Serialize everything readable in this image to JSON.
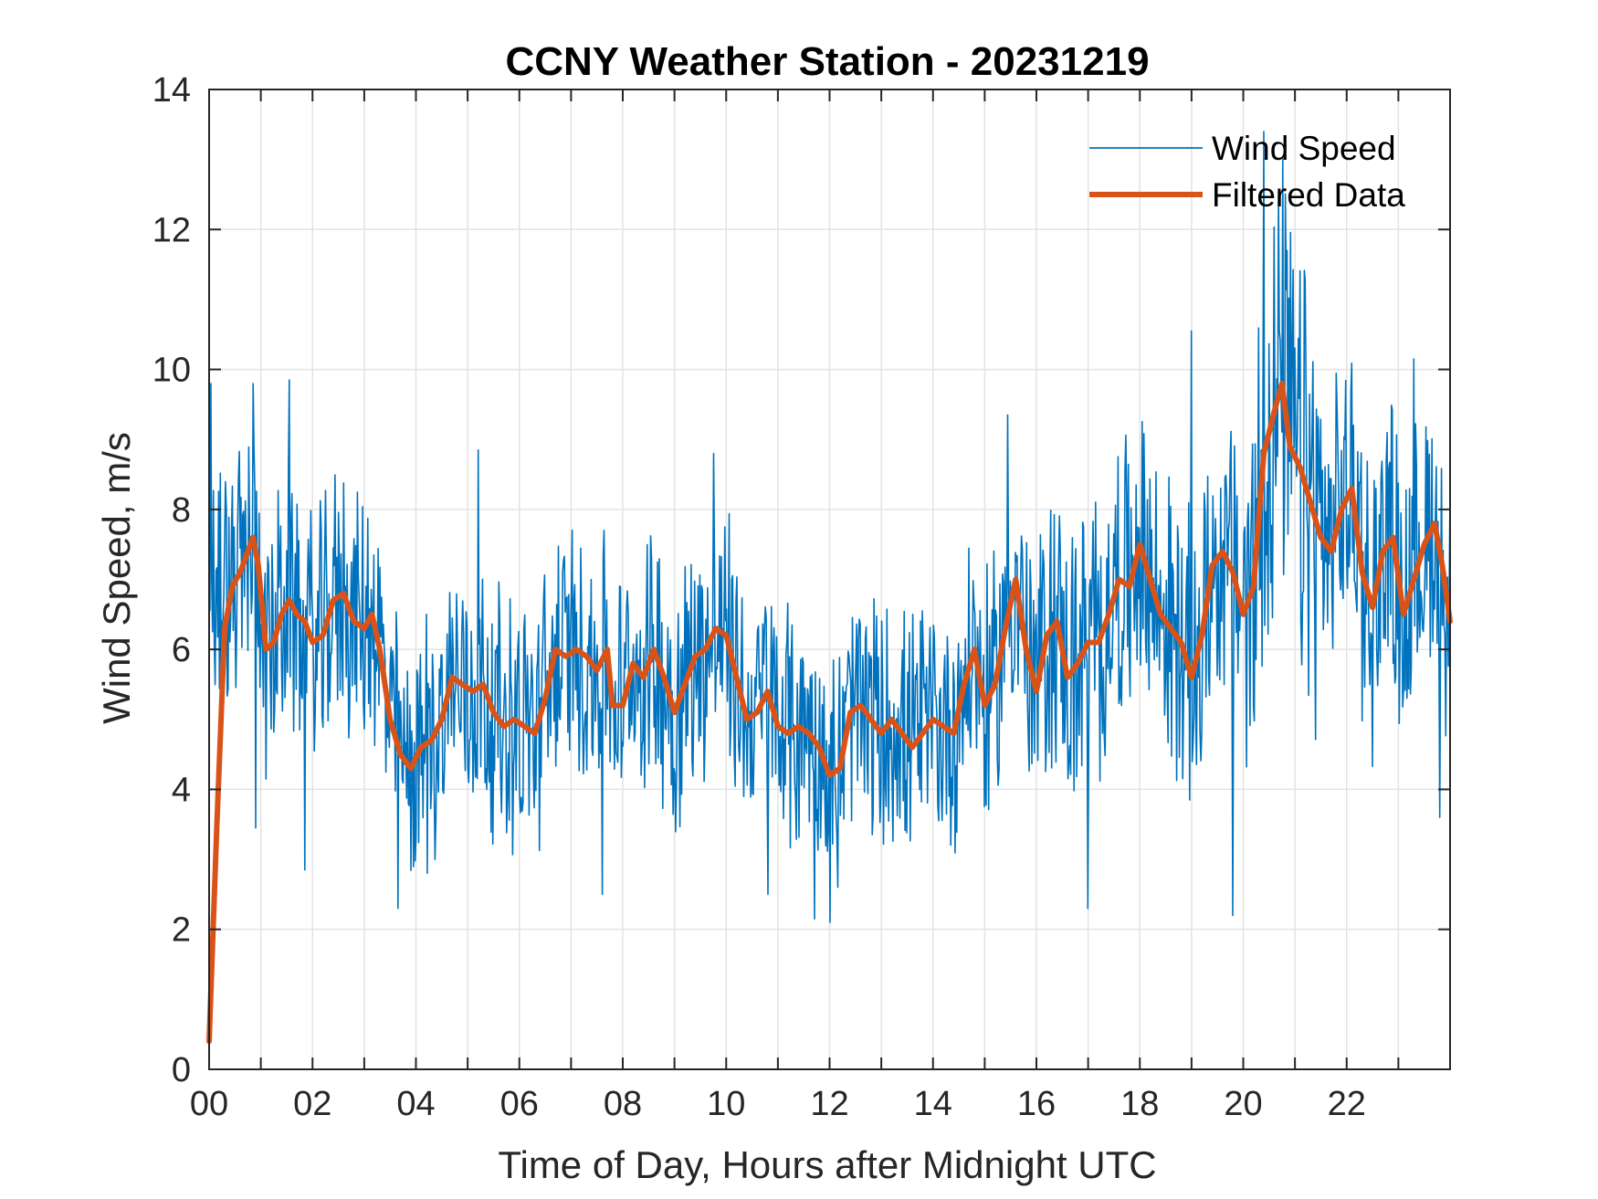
{
  "chart_data": {
    "type": "line",
    "title": "CCNY Weather Station - 20231219",
    "xlabel": "Time of Day, Hours after Midnight UTC",
    "ylabel": "Wind Speed, m/s",
    "xlim": [
      0,
      24
    ],
    "ylim": [
      0,
      14
    ],
    "grid": true,
    "legend_position": "top-right",
    "x_ticks": [
      0,
      2,
      4,
      6,
      8,
      10,
      12,
      14,
      16,
      18,
      20,
      22
    ],
    "x_tick_labels": [
      "00",
      "02",
      "04",
      "06",
      "08",
      "10",
      "12",
      "14",
      "16",
      "18",
      "20",
      "22"
    ],
    "x_minor_ticks": [
      1,
      3,
      5,
      7,
      9,
      11,
      13,
      15,
      17,
      19,
      21,
      23
    ],
    "y_ticks": [
      0,
      2,
      4,
      6,
      8,
      10,
      12,
      14
    ],
    "y_tick_labels": [
      "0",
      "2",
      "4",
      "6",
      "8",
      "10",
      "12",
      "14"
    ],
    "series": [
      {
        "name": "Wind Speed",
        "color": "#0072BD",
        "style": "thin-noisy",
        "note": "raw 1-minute samples fluctuating roughly ±2 m/s around the filtered curve; min ≈2.1 (~12.1h), max ≈13.4 (~20.4h)",
        "noise_amplitude": 1.6,
        "peaks": [
          {
            "x": 0.03,
            "y": 9.8
          },
          {
            "x": 0.85,
            "y": 9.8
          },
          {
            "x": 1.55,
            "y": 9.85
          },
          {
            "x": 5.2,
            "y": 8.85
          },
          {
            "x": 9.75,
            "y": 8.8
          },
          {
            "x": 15.45,
            "y": 9.35
          },
          {
            "x": 19.0,
            "y": 10.55
          },
          {
            "x": 20.4,
            "y": 13.4
          },
          {
            "x": 20.85,
            "y": 11.7
          },
          {
            "x": 23.3,
            "y": 10.15
          }
        ],
        "troughs": [
          {
            "x": 0.9,
            "y": 3.45
          },
          {
            "x": 1.85,
            "y": 2.85
          },
          {
            "x": 3.65,
            "y": 2.3
          },
          {
            "x": 7.6,
            "y": 2.5
          },
          {
            "x": 10.8,
            "y": 2.5
          },
          {
            "x": 11.7,
            "y": 2.15
          },
          {
            "x": 12.0,
            "y": 2.1
          },
          {
            "x": 17.0,
            "y": 2.3
          },
          {
            "x": 19.8,
            "y": 2.2
          },
          {
            "x": 23.8,
            "y": 3.6
          }
        ]
      },
      {
        "name": "Filtered Data",
        "color": "#D95319",
        "style": "thick",
        "x": [
          0.0,
          0.15,
          0.3,
          0.45,
          0.6,
          0.75,
          0.85,
          0.95,
          1.1,
          1.25,
          1.4,
          1.55,
          1.7,
          1.85,
          2.0,
          2.2,
          2.4,
          2.6,
          2.8,
          3.0,
          3.15,
          3.3,
          3.5,
          3.7,
          3.9,
          4.1,
          4.3,
          4.5,
          4.7,
          4.9,
          5.1,
          5.3,
          5.5,
          5.7,
          5.9,
          6.1,
          6.3,
          6.5,
          6.7,
          6.9,
          7.1,
          7.3,
          7.5,
          7.7,
          7.8,
          8.0,
          8.2,
          8.4,
          8.6,
          8.8,
          9.0,
          9.2,
          9.4,
          9.6,
          9.8,
          10.0,
          10.2,
          10.4,
          10.6,
          10.8,
          11.0,
          11.2,
          11.4,
          11.6,
          11.8,
          12.0,
          12.2,
          12.4,
          12.6,
          12.8,
          13.0,
          13.2,
          13.4,
          13.6,
          13.8,
          14.0,
          14.2,
          14.4,
          14.6,
          14.8,
          15.0,
          15.2,
          15.4,
          15.6,
          15.8,
          16.0,
          16.2,
          16.4,
          16.6,
          16.8,
          17.0,
          17.2,
          17.4,
          17.6,
          17.8,
          18.0,
          18.2,
          18.4,
          18.6,
          18.8,
          19.0,
          19.2,
          19.4,
          19.6,
          19.8,
          20.0,
          20.2,
          20.4,
          20.6,
          20.75,
          20.9,
          21.1,
          21.3,
          21.5,
          21.7,
          21.9,
          22.1,
          22.3,
          22.5,
          22.7,
          22.9,
          23.1,
          23.3,
          23.5,
          23.7,
          23.85,
          24.0
        ],
        "y": [
          0.4,
          3.5,
          6.3,
          6.9,
          7.1,
          7.4,
          7.6,
          7.2,
          6.0,
          6.1,
          6.5,
          6.7,
          6.5,
          6.4,
          6.1,
          6.2,
          6.7,
          6.8,
          6.4,
          6.3,
          6.5,
          6.0,
          5.0,
          4.5,
          4.3,
          4.6,
          4.7,
          5.0,
          5.6,
          5.5,
          5.4,
          5.5,
          5.1,
          4.9,
          5.0,
          4.9,
          4.8,
          5.3,
          6.0,
          5.9,
          6.0,
          5.9,
          5.7,
          6.0,
          5.2,
          5.2,
          5.8,
          5.6,
          6.0,
          5.6,
          5.1,
          5.5,
          5.9,
          6.0,
          6.3,
          6.2,
          5.6,
          5.0,
          5.1,
          5.4,
          4.9,
          4.8,
          4.9,
          4.8,
          4.6,
          4.2,
          4.3,
          5.1,
          5.2,
          5.0,
          4.8,
          5.0,
          4.8,
          4.6,
          4.8,
          5.0,
          4.9,
          4.8,
          5.5,
          6.0,
          5.2,
          5.5,
          6.3,
          7.0,
          6.0,
          5.4,
          6.2,
          6.4,
          5.6,
          5.8,
          6.1,
          6.1,
          6.5,
          7.0,
          6.9,
          7.5,
          7.0,
          6.5,
          6.3,
          6.1,
          5.6,
          6.2,
          7.2,
          7.4,
          7.1,
          6.5,
          6.9,
          8.8,
          9.4,
          9.8,
          8.9,
          8.6,
          8.1,
          7.6,
          7.4,
          8.0,
          8.3,
          7.1,
          6.6,
          7.4,
          7.6,
          6.5,
          7.0,
          7.5,
          7.8,
          7.2,
          6.4
        ]
      }
    ]
  }
}
